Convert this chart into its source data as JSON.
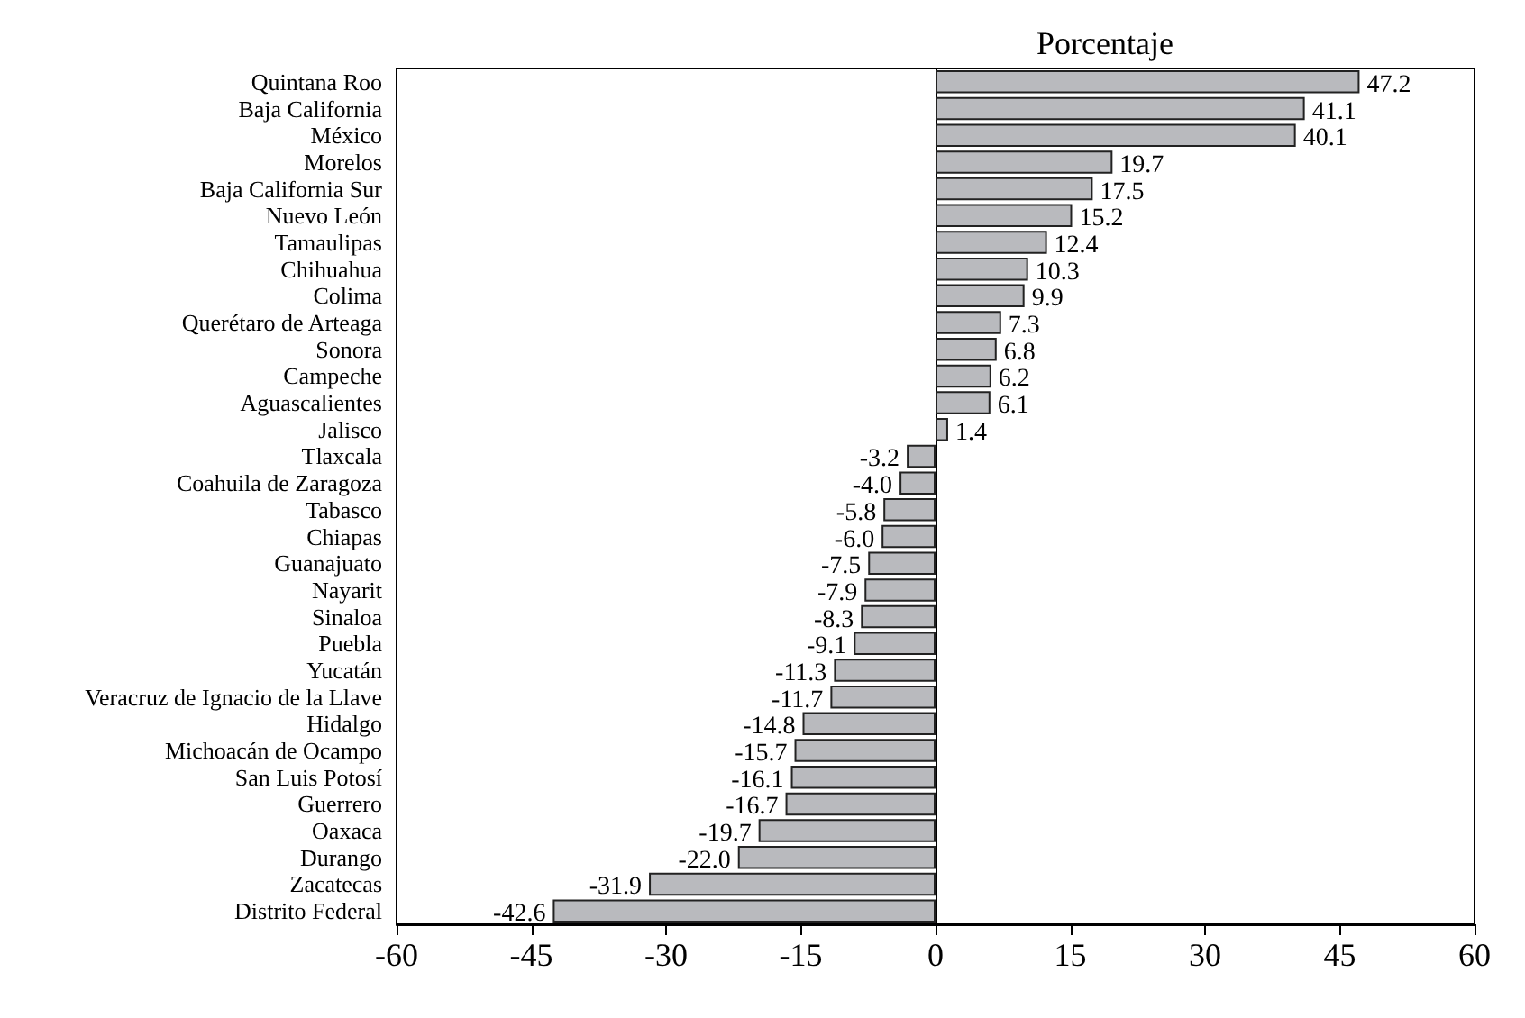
{
  "chart_data": {
    "type": "bar",
    "orientation": "horizontal",
    "title": "Porcentaje",
    "categories": [
      "Quintana Roo",
      "Baja California",
      "México",
      "Morelos",
      "Baja California Sur",
      "Nuevo León",
      "Tamaulipas",
      "Chihuahua",
      "Colima",
      "Querétaro de Arteaga",
      "Sonora",
      "Campeche",
      "Aguascalientes",
      "Jalisco",
      "Tlaxcala",
      "Coahuila de Zaragoza",
      "Tabasco",
      "Chiapas",
      "Guanajuato",
      "Nayarit",
      "Sinaloa",
      "Puebla",
      "Yucatán",
      "Veracruz de Ignacio de la Llave",
      "Hidalgo",
      "Michoacán de Ocampo",
      "San Luis Potosí",
      "Guerrero",
      "Oaxaca",
      "Durango",
      "Zacatecas",
      "Distrito Federal"
    ],
    "values": [
      47.2,
      41.1,
      40.1,
      19.7,
      17.5,
      15.2,
      12.4,
      10.3,
      9.9,
      7.3,
      6.8,
      6.2,
      6.1,
      1.4,
      -3.2,
      -4.0,
      -5.8,
      -6.0,
      -7.5,
      -7.9,
      -8.3,
      -9.1,
      -11.3,
      -11.7,
      -14.8,
      -15.7,
      -16.1,
      -16.7,
      -19.7,
      -22.0,
      -31.9,
      -42.6
    ],
    "value_labels": [
      "47.2",
      "41.1",
      "40.1",
      "19.7",
      "17.5",
      "15.2",
      "12.4",
      "10.3",
      "9.9",
      "7.3",
      "6.8",
      "6.2",
      "6.1",
      "1.4",
      "-3.2",
      "-4.0",
      "-5.8",
      "-6.0",
      "-7.5",
      "-7.9",
      "-8.3",
      "-9.1",
      "-11.3",
      "-11.7",
      "-14.8",
      "-15.7",
      "-16.1",
      "-16.7",
      "-19.7",
      "-22.0",
      "-31.9",
      "-42.6"
    ],
    "color": "#b9babe",
    "xlim": [
      -60,
      60
    ],
    "xticks": [
      -60,
      -45,
      -30,
      -15,
      0,
      15,
      30,
      45,
      60
    ]
  }
}
